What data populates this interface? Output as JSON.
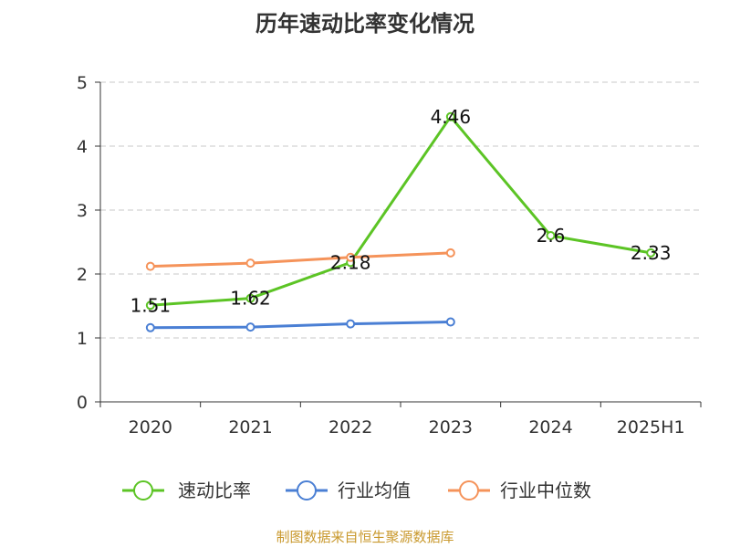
{
  "chart_data": {
    "type": "line",
    "title": "历年速动比率变化情况",
    "categories": [
      "2020",
      "2021",
      "2022",
      "2023",
      "2024",
      "2025H1"
    ],
    "ylim": [
      0,
      5
    ],
    "yticks": [
      0,
      1,
      2,
      3,
      4,
      5
    ],
    "grid": true,
    "legend_position": "bottom",
    "series": [
      {
        "name": "速动比率",
        "color": "#5cc425",
        "values": [
          1.51,
          1.62,
          2.18,
          4.46,
          2.6,
          2.33
        ],
        "labels": [
          "1.51",
          "1.62",
          "2.18",
          "4.46",
          "2.6",
          "2.33"
        ]
      },
      {
        "name": "行业均值",
        "color": "#4a7fd4",
        "values": [
          1.16,
          1.17,
          1.22,
          1.25,
          null,
          null
        ]
      },
      {
        "name": "行业中位数",
        "color": "#f5935a",
        "values": [
          2.12,
          2.17,
          2.26,
          2.33,
          null,
          null
        ]
      }
    ]
  },
  "footer": {
    "source": "制图数据来自恒生聚源数据库"
  }
}
